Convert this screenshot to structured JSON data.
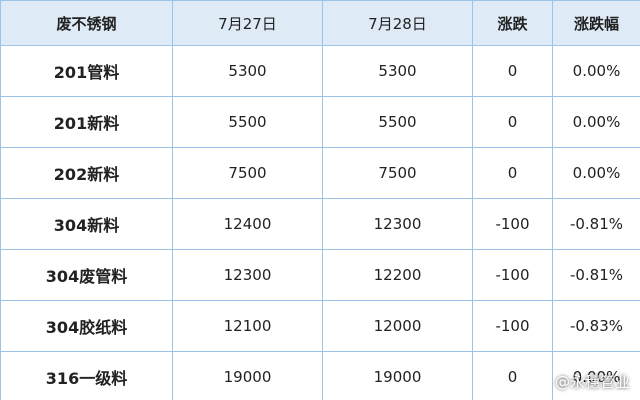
{
  "table": {
    "header": [
      "废不锈钢",
      "7月27日",
      "7月28日",
      "涨跌",
      "涨跌幅"
    ],
    "rows": [
      [
        "201管料",
        "5300",
        "5300",
        "0",
        "0.00%"
      ],
      [
        "201新料",
        "5500",
        "5500",
        "0",
        "0.00%"
      ],
      [
        "202新料",
        "7500",
        "7500",
        "0",
        "0.00%"
      ],
      [
        "304新料",
        "12400",
        "12300",
        "-100",
        "-0.81%"
      ],
      [
        "304废管料",
        "12300",
        "12200",
        "-100",
        "-0.81%"
      ],
      [
        "304胶纸料",
        "12100",
        "12000",
        "-100",
        "-0.83%"
      ],
      [
        "316一级料",
        "19000",
        "19000",
        "0",
        "0.00%"
      ]
    ]
  },
  "watermark": "@永穗管业"
}
